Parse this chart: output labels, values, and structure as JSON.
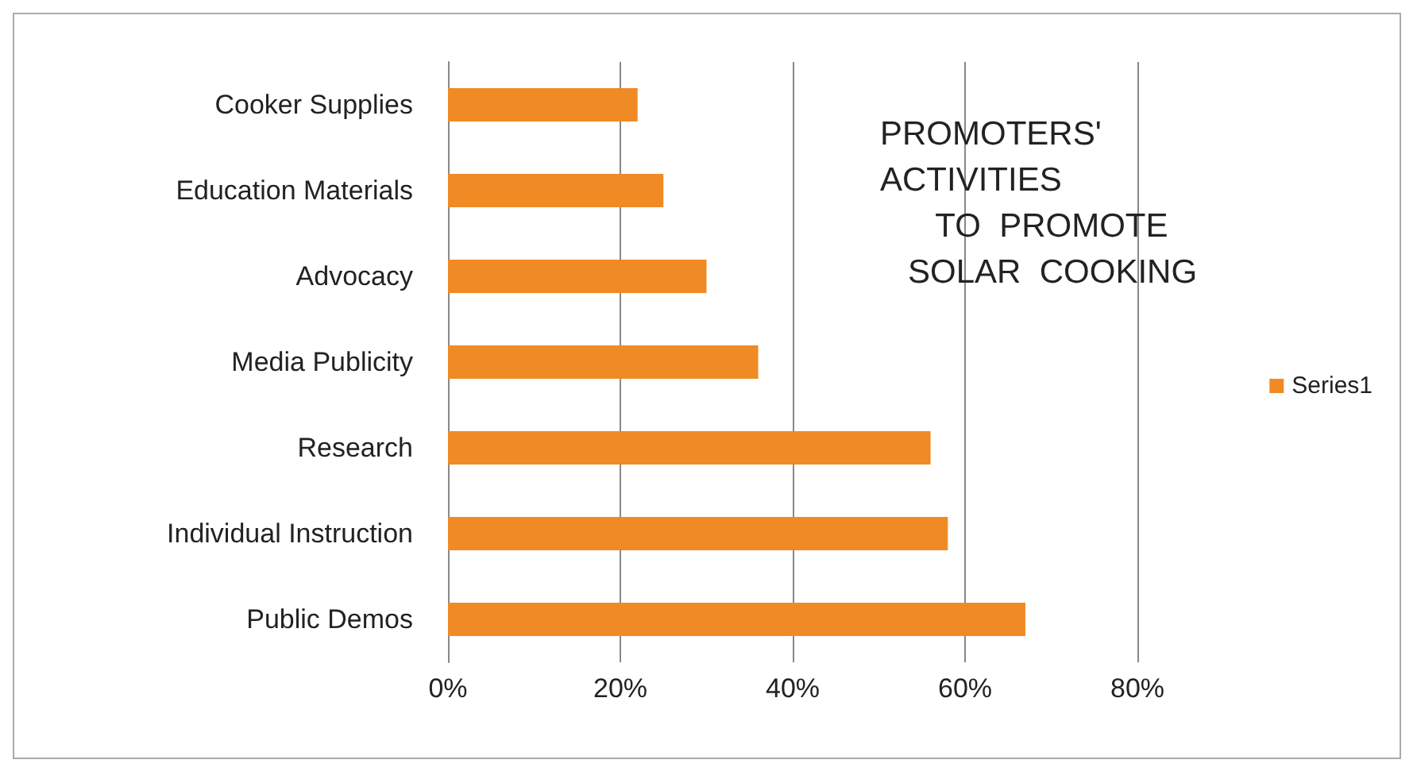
{
  "chart_data": {
    "type": "bar",
    "orientation": "horizontal",
    "title": "PROMOTERS'\nACTIVITIES\n      TO  PROMOTE\n   SOLAR  COOKING",
    "categories": [
      "Cooker Supplies",
      "Education Materials",
      "Advocacy",
      "Media Publicity",
      "Research",
      "Individual Instruction",
      "Public Demos"
    ],
    "series": [
      {
        "name": "Series1",
        "color": "#f08a24",
        "values": [
          22,
          25,
          30,
          36,
          56,
          58,
          67
        ]
      }
    ],
    "xlim": [
      0,
      80
    ],
    "xticks": [
      {
        "value": 0,
        "label": "0%"
      },
      {
        "value": 20,
        "label": "20%"
      },
      {
        "value": 40,
        "label": "40%"
      },
      {
        "value": 60,
        "label": "60%"
      },
      {
        "value": 80,
        "label": "80%"
      }
    ],
    "grid": "x",
    "legend": "right"
  }
}
